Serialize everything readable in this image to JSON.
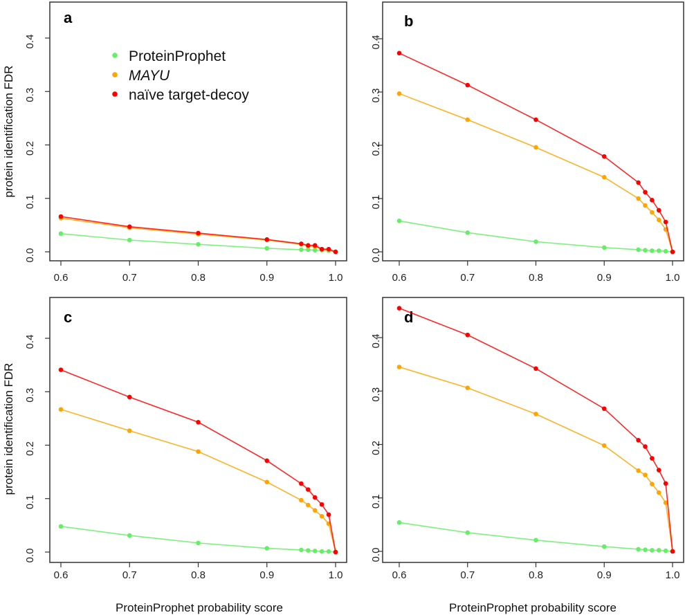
{
  "chart_data": {
    "type": "line",
    "xlabel": "ProteinProphet probability score",
    "ylabel": "protein identification FDR",
    "x": [
      0.6,
      0.7,
      0.8,
      0.9,
      0.95,
      0.96,
      0.97,
      0.98,
      0.99,
      1.0
    ],
    "x_ticks": [
      "0.6",
      "0.7",
      "0.8",
      "0.9",
      "1.0"
    ],
    "y_ticks": [
      "0.0",
      "0.1",
      "0.2",
      "0.3",
      "0.4"
    ],
    "xlim": [
      0.6,
      1.0
    ],
    "ylim": [
      0,
      0.45
    ],
    "grid": false,
    "legend": {
      "placement": "top-left (panel a)",
      "entries": [
        {
          "name": "ProteinProphet",
          "color": "#66ee66"
        },
        {
          "name": "MAYU",
          "color": "#ffa500",
          "italic": true
        },
        {
          "name": "naïve target-decoy",
          "color": "#ff0000"
        }
      ]
    },
    "colors": {
      "ProteinProphet": "#66ee66",
      "MAYU": "#ffa500",
      "naïve target-decoy": "#ff0000"
    },
    "panels": [
      {
        "label": "a",
        "series": [
          {
            "name": "ProteinProphet",
            "values": [
              0.034,
              0.022,
              0.014,
              0.0065,
              0.004,
              0.004,
              0.003,
              0.003,
              0.002,
              0.0
            ]
          },
          {
            "name": "MAYU",
            "values": [
              0.063,
              0.045,
              0.033,
              0.022,
              0.014,
              0.011,
              0.01,
              0.005,
              0.004,
              0.0
            ]
          },
          {
            "name": "naïve target-decoy",
            "values": [
              0.066,
              0.047,
              0.035,
              0.023,
              0.015,
              0.012,
              0.012,
              0.005,
              0.005,
              0.0
            ]
          }
        ]
      },
      {
        "label": "b",
        "series": [
          {
            "name": "ProteinProphet",
            "values": [
              0.058,
              0.036,
              0.019,
              0.008,
              0.004,
              0.003,
              0.002,
              0.002,
              0.001,
              0.0
            ]
          },
          {
            "name": "MAYU",
            "values": [
              0.297,
              0.248,
              0.196,
              0.14,
              0.1,
              0.087,
              0.074,
              0.06,
              0.042,
              0.0
            ]
          },
          {
            "name": "naïve target-decoy",
            "values": [
              0.373,
              0.313,
              0.248,
              0.179,
              0.13,
              0.112,
              0.097,
              0.078,
              0.056,
              0.0
            ]
          }
        ]
      },
      {
        "label": "c",
        "series": [
          {
            "name": "ProteinProphet",
            "values": [
              0.048,
              0.031,
              0.017,
              0.007,
              0.004,
              0.003,
              0.002,
              0.001,
              0.001,
              0.0
            ]
          },
          {
            "name": "MAYU",
            "values": [
              0.267,
              0.227,
              0.188,
              0.131,
              0.097,
              0.088,
              0.078,
              0.067,
              0.053,
              0.0
            ]
          },
          {
            "name": "naïve target-decoy",
            "values": [
              0.341,
              0.29,
              0.243,
              0.171,
              0.128,
              0.117,
              0.102,
              0.089,
              0.07,
              0.0
            ]
          }
        ]
      },
      {
        "label": "d",
        "series": [
          {
            "name": "ProteinProphet",
            "values": [
              0.054,
              0.035,
              0.021,
              0.009,
              0.004,
              0.003,
              0.002,
              0.002,
              0.001,
              0.0
            ]
          },
          {
            "name": "MAYU",
            "values": [
              0.345,
              0.306,
              0.257,
              0.198,
              0.151,
              0.143,
              0.126,
              0.11,
              0.091,
              0.0
            ]
          },
          {
            "name": "naïve target-decoy",
            "values": [
              0.455,
              0.405,
              0.342,
              0.267,
              0.208,
              0.196,
              0.174,
              0.152,
              0.127,
              0.0
            ]
          }
        ]
      }
    ]
  }
}
